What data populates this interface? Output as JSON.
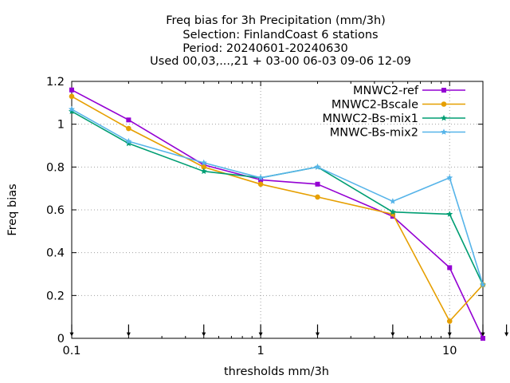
{
  "chart_data": {
    "type": "line",
    "title": [
      "Freq bias  for 3h Precipitation (mm/3h)",
      "Selection: FinlandCoast      6 stations",
      "Period: 20240601-20240630",
      "Used 00,03,...,21 + 03-00 06-03 09-06 12-09"
    ],
    "xlabel": "thresholds mm/3h",
    "ylabel": "Freq bias",
    "xscale": "log",
    "xlim": [
      0.1,
      15
    ],
    "ylim": [
      0,
      1.2
    ],
    "xticks": [
      0.1,
      1,
      10
    ],
    "xtick_labels": [
      "0.1",
      "1",
      "10"
    ],
    "yticks": [
      0,
      0.2,
      0.4,
      0.6,
      0.8,
      1.0,
      1.2
    ],
    "ytick_labels": [
      "0",
      "0.2",
      "0.4",
      "0.6",
      "0.8",
      "1",
      "1.2"
    ],
    "grid": true,
    "legend_position": "top-right",
    "threshold_markers": [
      0.1,
      0.2,
      0.5,
      1,
      2,
      5,
      10,
      15,
      20
    ],
    "x": [
      0.1,
      0.2,
      0.5,
      1,
      2,
      5,
      10,
      15
    ],
    "series": [
      {
        "name": "MNWC2-ref",
        "color": "#9400d3",
        "marker": "filled-square",
        "values": [
          1.16,
          1.02,
          0.81,
          0.74,
          0.72,
          0.57,
          0.33,
          0.0
        ]
      },
      {
        "name": "MNWC2-Bscale",
        "color": "#e69f00",
        "marker": "filled-circle",
        "values": [
          1.13,
          0.98,
          0.8,
          0.72,
          0.66,
          0.58,
          0.08,
          0.25
        ]
      },
      {
        "name": "MNWC2-Bs-mix1",
        "color": "#009e73",
        "marker": "filled-star",
        "values": [
          1.06,
          0.91,
          0.78,
          0.75,
          0.8,
          0.59,
          0.58,
          0.25
        ]
      },
      {
        "name": "MNWC-Bs-mix2",
        "color": "#56b4e9",
        "marker": "filled-star",
        "values": [
          1.07,
          0.92,
          0.82,
          0.75,
          0.8,
          0.64,
          0.75,
          0.25
        ]
      }
    ]
  }
}
